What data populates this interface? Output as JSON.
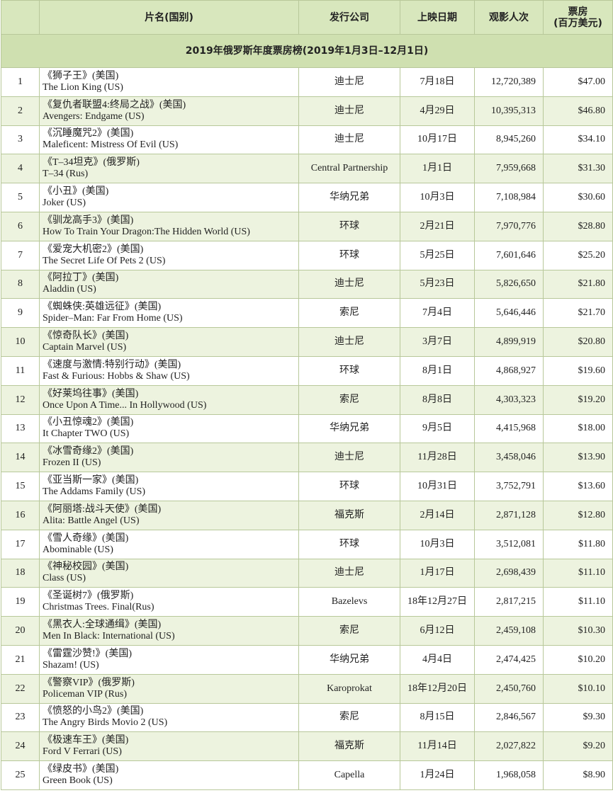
{
  "table": {
    "title": "2019年俄罗斯年度票房榜(2019年1月3日–12月1日)",
    "header": [
      "",
      "片名(国别)",
      "发行公司",
      "上映日期",
      "观影人次",
      [
        "票房",
        "(百万美元)"
      ]
    ],
    "rows": [
      [
        "1",
        "《狮子王》(美国)",
        "The Lion King (US)",
        "迪士尼",
        "7月18日",
        "12,720,389",
        "$47.00"
      ],
      [
        "2",
        "《复仇者联盟4:终局之战》(美国)",
        "Avengers: Endgame (US)",
        "迪士尼",
        "4月29日",
        "10,395,313",
        "$46.80"
      ],
      [
        "3",
        "《沉睡魔咒2》(美国)",
        "Maleficent: Mistress Of Evil (US)",
        "迪士尼",
        "10月17日",
        "8,945,260",
        "$34.10"
      ],
      [
        "4",
        "《T–34坦克》(俄罗斯)",
        "T–34 (Rus)",
        "Central Partnership",
        "1月1日",
        "7,959,668",
        "$31.30"
      ],
      [
        "5",
        "《小丑》(美国)",
        "Joker (US)",
        "华纳兄弟",
        "10月3日",
        "7,108,984",
        "$30.60"
      ],
      [
        "6",
        "《驯龙高手3》(美国)",
        "How To Train Your Dragon:The Hidden World (US)",
        "环球",
        "2月21日",
        "7,970,776",
        "$28.80"
      ],
      [
        "7",
        "《爱宠大机密2》(美国)",
        "The Secret Life Of Pets 2 (US)",
        "环球",
        "5月25日",
        "7,601,646",
        "$25.20"
      ],
      [
        "8",
        "《阿拉丁》(美国)",
        "Aladdin (US)",
        "迪士尼",
        "5月23日",
        "5,826,650",
        "$21.80"
      ],
      [
        "9",
        "《蜘蛛侠:英雄远征》(美国)",
        "Spider–Man: Far From Home (US)",
        "索尼",
        "7月4日",
        "5,646,446",
        "$21.70"
      ],
      [
        "10",
        "《惊奇队长》(美国)",
        "Captain Marvel (US)",
        "迪士尼",
        "3月7日",
        "4,899,919",
        "$20.80"
      ],
      [
        "11",
        "《速度与激情:特别行动》(美国)",
        "Fast & Furious: Hobbs & Shaw (US)",
        "环球",
        "8月1日",
        "4,868,927",
        "$19.60"
      ],
      [
        "12",
        "《好莱坞往事》(美国)",
        "Once Upon A Time... In Hollywood (US)",
        "索尼",
        "8月8日",
        "4,303,323",
        "$19.20"
      ],
      [
        "13",
        "《小丑惊魂2》(美国)",
        "It Chapter TWO (US)",
        "华纳兄弟",
        "9月5日",
        "4,415,968",
        "$18.00"
      ],
      [
        "14",
        "《冰雪奇缘2》(美国)",
        "Frozen II (US)",
        "迪士尼",
        "11月28日",
        "3,458,046",
        "$13.90"
      ],
      [
        "15",
        "《亚当斯一家》(美国)",
        "The Addams Family (US)",
        "环球",
        "10月31日",
        "3,752,791",
        "$13.60"
      ],
      [
        "16",
        "《阿丽塔:战斗天使》(美国)",
        "Alita: Battle Angel (US)",
        "福克斯",
        "2月14日",
        "2,871,128",
        "$12.80"
      ],
      [
        "17",
        "《雪人奇缘》(美国)",
        "Abominable (US)",
        "环球",
        "10月3日",
        "3,512,081",
        "$11.80"
      ],
      [
        "18",
        "《神秘校园》(美国)",
        "Class (US)",
        "迪士尼",
        "1月17日",
        "2,698,439",
        "$11.10"
      ],
      [
        "19",
        "《圣诞树7》(俄罗斯)",
        "Christmas Trees. Final(Rus)",
        "Bazelevs",
        "18年12月27日",
        "2,817,215",
        "$11.10"
      ],
      [
        "20",
        "《黑衣人:全球通缉》(美国)",
        "Men In Black: International (US)",
        "索尼",
        "6月12日",
        "2,459,108",
        "$10.30"
      ],
      [
        "21",
        "《雷霆沙赞!》(美国)",
        "Shazam! (US)",
        "华纳兄弟",
        "4月4日",
        "2,474,425",
        "$10.20"
      ],
      [
        "22",
        "《警察VIP》(俄罗斯)",
        "Policeman VIP (Rus)",
        "Karoprokat",
        "18年12月20日",
        "2,450,760",
        "$10.10"
      ],
      [
        "23",
        "《愤怒的小鸟2》(美国)",
        "The Angry Birds Movio 2 (US)",
        "索尼",
        "8月15日",
        "2,846,567",
        "$9.30"
      ],
      [
        "24",
        "《极速车王》(美国)",
        "Ford V Ferrari (US)",
        "福克斯",
        "11月14日",
        "2,027,822",
        "$9.20"
      ],
      [
        "25",
        "《绿皮书》(美国)",
        "Green Book (US)",
        "Capella",
        "1月24日",
        "1,968,058",
        "$8.90"
      ]
    ]
  }
}
